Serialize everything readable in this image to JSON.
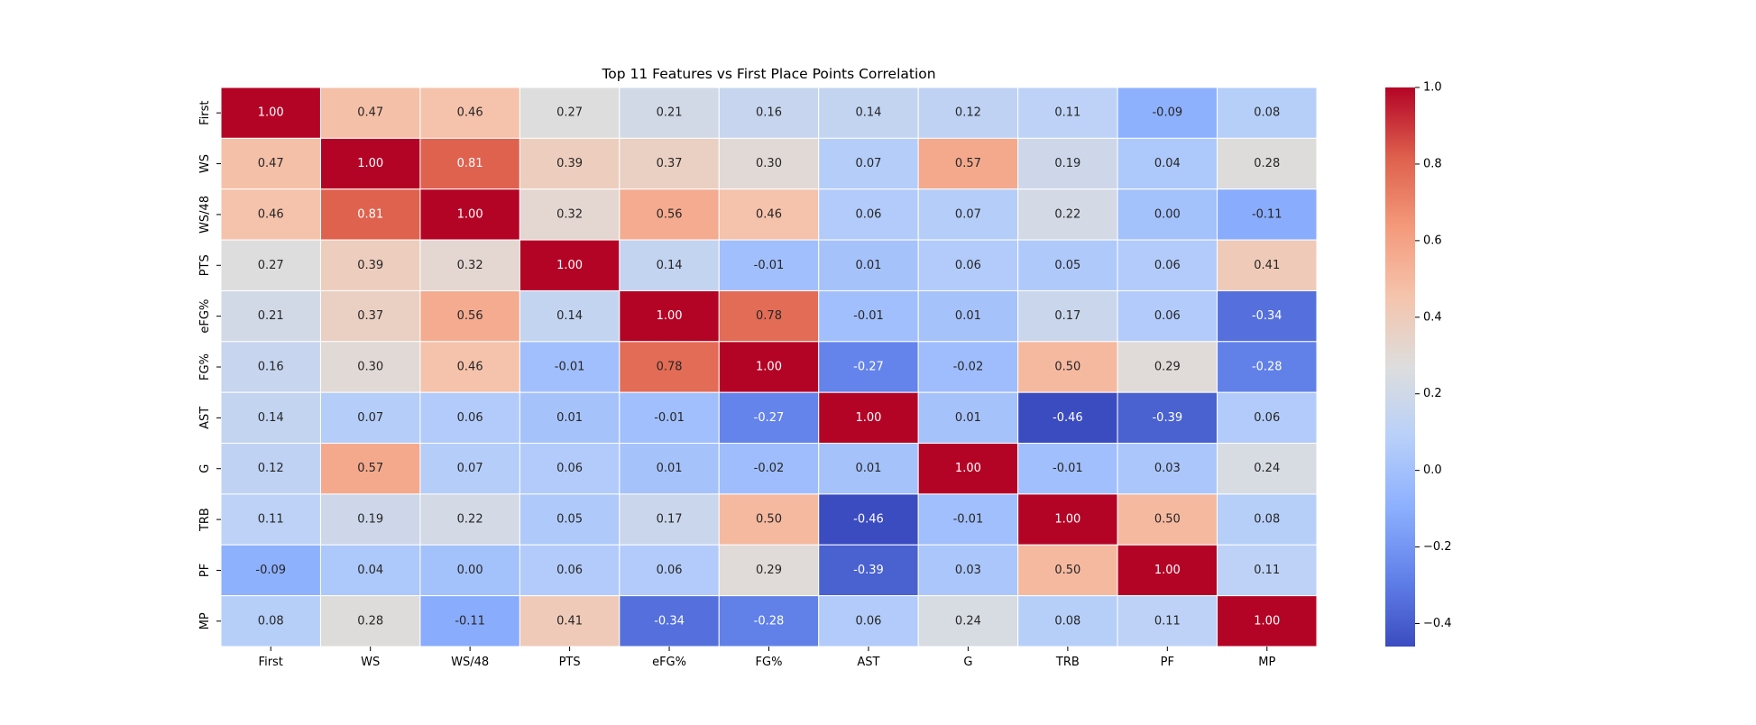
{
  "chart_data": {
    "type": "heatmap",
    "title": "Top 11 Features vs First Place Points Correlation",
    "xlabel": "",
    "ylabel": "",
    "x_labels": [
      "First",
      "WS",
      "WS/48",
      "PTS",
      "eFG%",
      "FG%",
      "AST",
      "G",
      "TRB",
      "PF",
      "MP"
    ],
    "y_labels": [
      "First",
      "WS",
      "WS/48",
      "PTS",
      "eFG%",
      "FG%",
      "AST",
      "G",
      "TRB",
      "PF",
      "MP"
    ],
    "matrix": [
      [
        "1.00",
        "0.47",
        "0.46",
        "0.27",
        "0.21",
        "0.16",
        "0.14",
        "0.12",
        "0.11",
        "-0.09",
        "0.08"
      ],
      [
        "0.47",
        "1.00",
        "0.81",
        "0.39",
        "0.37",
        "0.30",
        "0.07",
        "0.57",
        "0.19",
        "0.04",
        "0.28"
      ],
      [
        "0.46",
        "0.81",
        "1.00",
        "0.32",
        "0.56",
        "0.46",
        "0.06",
        "0.07",
        "0.22",
        "0.00",
        "-0.11"
      ],
      [
        "0.27",
        "0.39",
        "0.32",
        "1.00",
        "0.14",
        "-0.01",
        "0.01",
        "0.06",
        "0.05",
        "0.06",
        "0.41"
      ],
      [
        "0.21",
        "0.37",
        "0.56",
        "0.14",
        "1.00",
        "0.78",
        "-0.01",
        "0.01",
        "0.17",
        "0.06",
        "-0.34"
      ],
      [
        "0.16",
        "0.30",
        "0.46",
        "-0.01",
        "0.78",
        "1.00",
        "-0.27",
        "-0.02",
        "0.50",
        "0.29",
        "-0.28"
      ],
      [
        "0.14",
        "0.07",
        "0.06",
        "0.01",
        "-0.01",
        "-0.27",
        "1.00",
        "0.01",
        "-0.46",
        "-0.39",
        "0.06"
      ],
      [
        "0.12",
        "0.57",
        "0.07",
        "0.06",
        "0.01",
        "-0.02",
        "0.01",
        "1.00",
        "-0.01",
        "0.03",
        "0.24"
      ],
      [
        "0.11",
        "0.19",
        "0.22",
        "0.05",
        "0.17",
        "0.50",
        "-0.46",
        "-0.01",
        "1.00",
        "0.50",
        "0.08"
      ],
      [
        "-0.09",
        "0.04",
        "0.00",
        "0.06",
        "0.06",
        "0.29",
        "-0.39",
        "0.03",
        "0.50",
        "1.00",
        "0.11"
      ],
      [
        "0.08",
        "0.28",
        "-0.11",
        "0.41",
        "-0.34",
        "-0.28",
        "0.06",
        "0.24",
        "0.08",
        "0.11",
        "1.00"
      ]
    ],
    "colorbar": {
      "vmin": -0.46,
      "vmax": 1.0,
      "ticks": [
        1.0,
        0.8,
        0.6,
        0.4,
        0.2,
        0.0,
        -0.2,
        -0.4
      ],
      "tick_labels": [
        "1.0",
        "0.8",
        "0.6",
        "0.4",
        "0.2",
        "0.0",
        "−0.2",
        "−0.4"
      ],
      "colormap": "coolwarm"
    },
    "annotations": true,
    "grid": false
  }
}
